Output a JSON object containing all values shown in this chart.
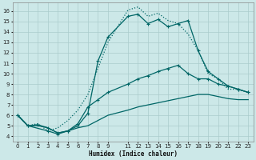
{
  "xlabel": "Humidex (Indice chaleur)",
  "xlim": [
    -0.5,
    23.5
  ],
  "ylim": [
    3.5,
    16.8
  ],
  "yticks": [
    4,
    5,
    6,
    7,
    8,
    9,
    10,
    11,
    12,
    13,
    14,
    15,
    16
  ],
  "xticks": [
    0,
    1,
    2,
    3,
    4,
    5,
    6,
    7,
    8,
    9,
    11,
    12,
    13,
    14,
    15,
    16,
    17,
    18,
    19,
    20,
    21,
    22,
    23
  ],
  "bg_color": "#cce8e8",
  "grid_color": "#aacccc",
  "line_color": "#006666",
  "series": [
    {
      "x": [
        0,
        1,
        2,
        3,
        4,
        5,
        6,
        7,
        8,
        9,
        11,
        12,
        13,
        14,
        15,
        16,
        17,
        18,
        19,
        20,
        21,
        22,
        23
      ],
      "y": [
        6,
        5,
        5.2,
        4.5,
        4.8,
        5.5,
        6.5,
        8.0,
        10.5,
        13.0,
        16.1,
        16.4,
        15.5,
        15.8,
        15.1,
        14.8,
        13.8,
        12.2,
        10.0,
        9.5,
        8.5,
        8.5,
        8.2
      ],
      "linestyle": "dotted",
      "marker": null,
      "lw": 0.9
    },
    {
      "x": [
        0,
        1,
        3,
        4,
        5,
        6,
        7,
        8,
        9,
        11,
        12,
        13,
        14,
        15,
        16,
        17,
        18,
        19,
        20,
        21,
        22,
        23
      ],
      "y": [
        6,
        5,
        4.5,
        4.2,
        4.5,
        5.0,
        6.2,
        11.2,
        13.5,
        15.5,
        15.7,
        14.8,
        15.2,
        14.5,
        14.8,
        15.1,
        12.2,
        10.2,
        9.5,
        8.8,
        8.5,
        8.2
      ],
      "linestyle": "-",
      "marker": "+",
      "lw": 0.9
    },
    {
      "x": [
        0,
        1,
        2,
        3,
        4,
        5,
        6,
        7,
        8,
        9,
        11,
        12,
        13,
        14,
        15,
        16,
        17,
        18,
        19,
        20,
        21,
        22,
        23
      ],
      "y": [
        6,
        5,
        5.1,
        4.8,
        4.3,
        4.5,
        5.2,
        6.8,
        7.5,
        8.2,
        9.0,
        9.5,
        9.8,
        10.2,
        10.5,
        10.8,
        10.0,
        9.5,
        9.5,
        9.0,
        8.8,
        8.5,
        8.2
      ],
      "linestyle": "-",
      "marker": "+",
      "lw": 0.9
    },
    {
      "x": [
        0,
        1,
        2,
        3,
        4,
        5,
        6,
        7,
        8,
        9,
        11,
        12,
        13,
        14,
        15,
        16,
        17,
        18,
        19,
        20,
        21,
        22,
        23
      ],
      "y": [
        6,
        5,
        5.0,
        4.8,
        4.3,
        4.5,
        4.8,
        5.0,
        5.5,
        6.0,
        6.5,
        6.8,
        7.0,
        7.2,
        7.4,
        7.6,
        7.8,
        8.0,
        8.0,
        7.8,
        7.6,
        7.5,
        7.5
      ],
      "linestyle": "-",
      "marker": null,
      "lw": 0.9
    }
  ]
}
